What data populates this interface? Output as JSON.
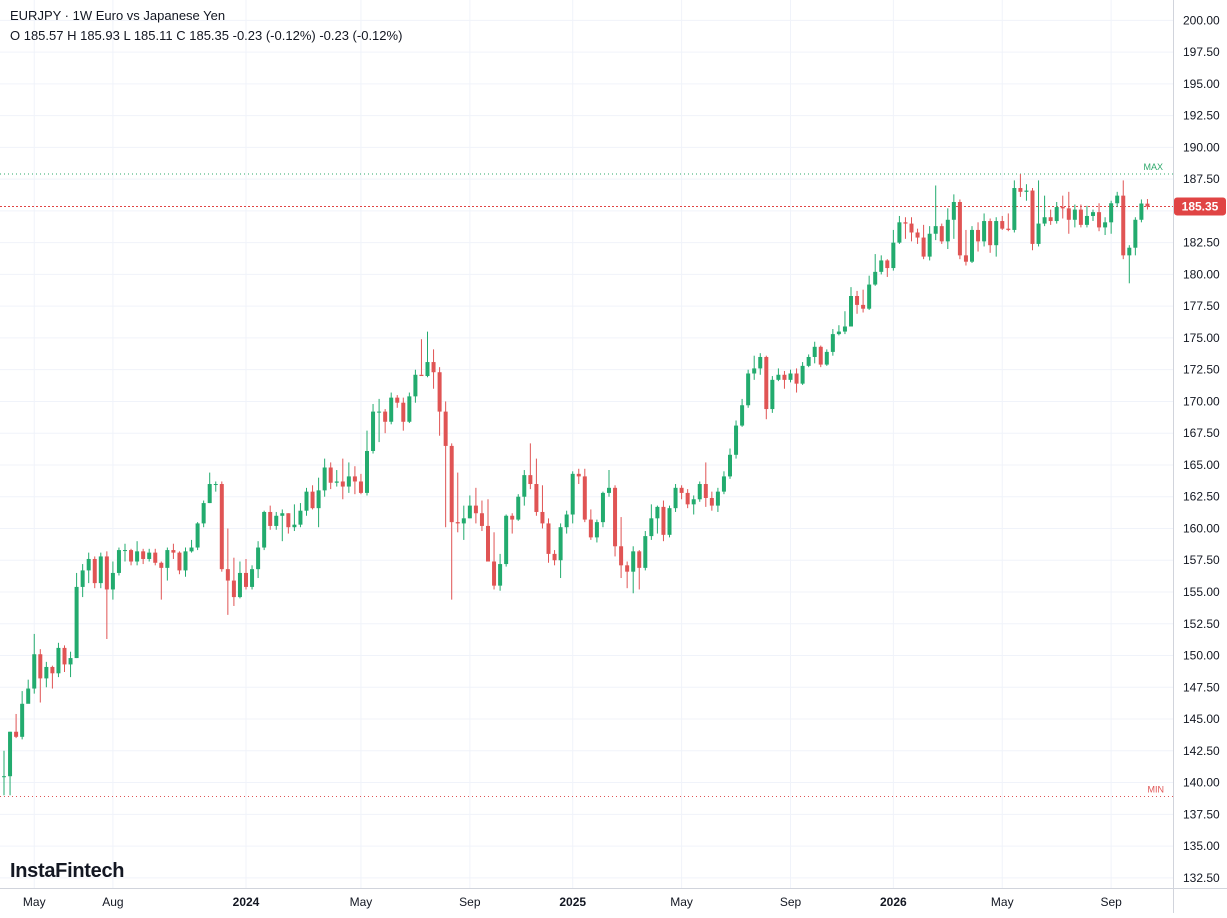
{
  "header": {
    "symbol_line": "EURJPY · 1W Euro vs Japanese Yen",
    "ohlc_line": "O 185.57 H 185.93 L 185.11 C 185.35 -0.23 (-0.12%) -0.23 (-0.12%)"
  },
  "logo": {
    "text": "InstaFintech"
  },
  "colors": {
    "up": "#26a69a",
    "down": "#ef5350",
    "up_body": "#22ab6e",
    "down_body": "#e05454",
    "max_line": "#2ea86b",
    "min_line": "#e05454",
    "last_price_line": "#e04444",
    "grid": "#f0f3fa",
    "axis_text": "#131722"
  },
  "chart_data": {
    "type": "candlestick",
    "symbol": "EURJPY",
    "timeframe": "1W",
    "yticks": [
      200.0,
      197.5,
      195.0,
      192.5,
      190.0,
      187.5,
      185.0,
      182.5,
      180.0,
      177.5,
      175.0,
      172.5,
      170.0,
      167.5,
      165.0,
      162.5,
      160.0,
      157.5,
      155.0,
      152.5,
      150.0,
      147.5,
      145.0,
      142.5,
      140.0,
      137.5,
      135.0,
      132.5
    ],
    "ylim": [
      131.7,
      201.6
    ],
    "xticks": [
      {
        "label": "May",
        "idx": 5
      },
      {
        "label": "Aug",
        "idx": 18
      },
      {
        "label": "2024",
        "idx": 40,
        "bold": true
      },
      {
        "label": "May",
        "idx": 59
      },
      {
        "label": "Sep",
        "idx": 77
      },
      {
        "label": "2025",
        "idx": 94,
        "bold": true
      },
      {
        "label": "May",
        "idx": 112
      },
      {
        "label": "Sep",
        "idx": 130
      },
      {
        "label": "2026",
        "idx": 147,
        "bold": true
      },
      {
        "label": "May",
        "idx": 165
      },
      {
        "label": "Sep",
        "idx": 183
      }
    ],
    "max_label": "MAX",
    "max_value": 187.9,
    "min_label": "MIN",
    "min_value": 138.9,
    "last_price_label": "185.35",
    "last_price": 185.35,
    "candles": [
      [
        140.5,
        140.5,
        139,
        142.5
      ],
      [
        140.5,
        144,
        139,
        144
      ],
      [
        144,
        143.6,
        143.5,
        145.4
      ],
      [
        143.6,
        146.2,
        143.4,
        147.2
      ],
      [
        146.2,
        147.4,
        146.3,
        148.1
      ],
      [
        147.4,
        150.1,
        147,
        151.7
      ],
      [
        150.1,
        148.2,
        146.3,
        150.5
      ],
      [
        148.2,
        149.1,
        147.5,
        149.5
      ],
      [
        149.1,
        148.6,
        147.4,
        149.2
      ],
      [
        148.6,
        150.6,
        148.3,
        151
      ],
      [
        150.6,
        149.3,
        148.7,
        150.8
      ],
      [
        149.3,
        149.8,
        148.3,
        150.3
      ],
      [
        149.8,
        155.4,
        149.8,
        156.5
      ],
      [
        155.4,
        156.7,
        154.6,
        157.2
      ],
      [
        156.7,
        157.6,
        155.7,
        158.1
      ],
      [
        157.6,
        155.7,
        155.3,
        157.8
      ],
      [
        155.7,
        157.8,
        155.3,
        158.1
      ],
      [
        157.8,
        155.2,
        151.3,
        158.2
      ],
      [
        155.2,
        156.5,
        154.4,
        157.4
      ],
      [
        156.5,
        158.3,
        156.3,
        158.5
      ],
      [
        158.3,
        158.3,
        157.4,
        158.8
      ],
      [
        158.3,
        157.4,
        157.1,
        158.4
      ],
      [
        157.4,
        158.2,
        157.1,
        159
      ],
      [
        158.2,
        157.6,
        157.2,
        158.4
      ],
      [
        157.6,
        158.1,
        157.4,
        158.4
      ],
      [
        158.1,
        157.3,
        157.1,
        158.4
      ],
      [
        157.3,
        156.9,
        154.4,
        157.4
      ],
      [
        156.9,
        158.3,
        155.9,
        158.5
      ],
      [
        158.3,
        158.1,
        157.6,
        158.8
      ],
      [
        158.1,
        156.7,
        156.4,
        158.2
      ],
      [
        156.7,
        158.2,
        156.2,
        158.5
      ],
      [
        158.2,
        158.5,
        158.1,
        159.1
      ],
      [
        158.5,
        160.4,
        158.3,
        160.5
      ],
      [
        160.4,
        162,
        160.1,
        162.2
      ],
      [
        162,
        163.5,
        162,
        164.4
      ],
      [
        163.5,
        163.5,
        162.9,
        163.7
      ],
      [
        163.5,
        156.8,
        156.6,
        163.7
      ],
      [
        156.8,
        155.9,
        153.2,
        160
      ],
      [
        155.9,
        154.6,
        153.9,
        157.7
      ],
      [
        154.6,
        156.5,
        154.5,
        157.4
      ],
      [
        156.5,
        155.4,
        155.2,
        157.6
      ],
      [
        155.4,
        156.8,
        155.2,
        157.1
      ],
      [
        156.8,
        158.5,
        156.1,
        159
      ],
      [
        158.5,
        161.3,
        158.3,
        161.4
      ],
      [
        161.3,
        160.2,
        159.9,
        161.8
      ],
      [
        160.2,
        161,
        159.9,
        161.3
      ],
      [
        161,
        161.2,
        159,
        161.5
      ],
      [
        161.2,
        160.1,
        159.6,
        161.2
      ],
      [
        160.1,
        160.3,
        159.8,
        161.9
      ],
      [
        160.3,
        161.4,
        160.1,
        162
      ],
      [
        161.4,
        162.9,
        161,
        163.2
      ],
      [
        162.9,
        161.6,
        161.5,
        163.4
      ],
      [
        161.6,
        163,
        160.1,
        164
      ],
      [
        163,
        164.8,
        162.5,
        165.5
      ],
      [
        164.8,
        163.6,
        163.1,
        165.2
      ],
      [
        163.6,
        163.7,
        163.3,
        164.6
      ],
      [
        163.7,
        163.3,
        162.3,
        165.5
      ],
      [
        163.3,
        164.1,
        162.8,
        165.2
      ],
      [
        164.1,
        163.7,
        162.7,
        164.9
      ],
      [
        163.7,
        162.8,
        162.7,
        164.3
      ],
      [
        162.8,
        166.1,
        162.6,
        167.7
      ],
      [
        166.1,
        169.2,
        165.9,
        169.8
      ],
      [
        169.2,
        169.2,
        166.8,
        170.2
      ],
      [
        169.2,
        168.4,
        167.5,
        169.4
      ],
      [
        168.4,
        170.3,
        168.2,
        170.7
      ],
      [
        170.3,
        169.9,
        169.5,
        170.5
      ],
      [
        169.9,
        168.4,
        167.7,
        170.3
      ],
      [
        168.4,
        170.4,
        168.3,
        170.7
      ],
      [
        170.4,
        172.1,
        169.9,
        172.5
      ],
      [
        172.1,
        172,
        172.1,
        174.9
      ],
      [
        172,
        173.1,
        171.9,
        175.5
      ],
      [
        173.1,
        172.3,
        171,
        174.1
      ],
      [
        172.3,
        169.2,
        167.3,
        172.7
      ],
      [
        169.2,
        166.5,
        160.1,
        170
      ],
      [
        166.5,
        160.5,
        154.4,
        166.7
      ],
      [
        160.5,
        160.4,
        159.7,
        164.4
      ],
      [
        160.4,
        160.8,
        159.1,
        161.8
      ],
      [
        160.8,
        161.8,
        160.8,
        162.6
      ],
      [
        161.8,
        161.2,
        160.4,
        163.2
      ],
      [
        161.2,
        160.2,
        159.8,
        162.2
      ],
      [
        160.2,
        157.4,
        157.4,
        162.3
      ],
      [
        157.4,
        155.5,
        155.2,
        159.7
      ],
      [
        155.5,
        157.2,
        155.1,
        158
      ],
      [
        157.2,
        161,
        157,
        161.1
      ],
      [
        161,
        160.7,
        159.6,
        161.2
      ],
      [
        160.7,
        162.5,
        160.6,
        162.7
      ],
      [
        162.5,
        164.2,
        161.8,
        164.6
      ],
      [
        164.2,
        163.5,
        163.1,
        166.7
      ],
      [
        163.5,
        161.3,
        161,
        165.5
      ],
      [
        161.3,
        160.4,
        160,
        163.4
      ],
      [
        160.4,
        158,
        157.3,
        160.8
      ],
      [
        158,
        157.5,
        157.1,
        158.3
      ],
      [
        157.5,
        160.1,
        156.1,
        160.4
      ],
      [
        160.1,
        161.1,
        159.6,
        161.4
      ],
      [
        161.1,
        164.3,
        160.4,
        164.5
      ],
      [
        164.3,
        164.1,
        163.5,
        164.7
      ],
      [
        164.1,
        160.7,
        160.5,
        164.7
      ],
      [
        160.7,
        159.3,
        159.1,
        161.5
      ],
      [
        159.3,
        160.5,
        158.9,
        160.7
      ],
      [
        160.5,
        162.8,
        160.1,
        162.9
      ],
      [
        162.8,
        163.2,
        162.5,
        164.6
      ],
      [
        163.2,
        158.6,
        157.8,
        163.4
      ],
      [
        158.6,
        157.1,
        156.1,
        160.9
      ],
      [
        157.1,
        156.6,
        155.3,
        157.4
      ],
      [
        156.6,
        158.2,
        154.9,
        158.6
      ],
      [
        158.2,
        156.9,
        155.2,
        158.3
      ],
      [
        156.9,
        159.4,
        156.7,
        159.8
      ],
      [
        159.4,
        160.8,
        159.1,
        161.9
      ],
      [
        160.8,
        161.7,
        159.6,
        161.8
      ],
      [
        161.7,
        159.5,
        159,
        162.2
      ],
      [
        159.5,
        161.6,
        159.3,
        161.8
      ],
      [
        161.6,
        163.2,
        161.3,
        163.5
      ],
      [
        163.2,
        162.8,
        162.3,
        163.4
      ],
      [
        162.8,
        161.9,
        161.6,
        163.1
      ],
      [
        161.9,
        162.3,
        161.1,
        162.6
      ],
      [
        162.3,
        163.5,
        162.1,
        163.7
      ],
      [
        163.5,
        162.4,
        161.7,
        165.2
      ],
      [
        162.4,
        161.8,
        161.4,
        162.9
      ],
      [
        161.8,
        162.9,
        161.3,
        163.2
      ],
      [
        162.9,
        164.1,
        162.7,
        164.5
      ],
      [
        164.1,
        165.8,
        163.9,
        166.3
      ],
      [
        165.8,
        168.1,
        165.5,
        168.5
      ],
      [
        168.1,
        169.7,
        168,
        170.2
      ],
      [
        169.7,
        172.2,
        169.5,
        172.5
      ],
      [
        172.2,
        172.6,
        171.7,
        173.6
      ],
      [
        172.6,
        173.5,
        172.1,
        173.8
      ],
      [
        173.5,
        169.4,
        168.6,
        173.6
      ],
      [
        169.4,
        171.7,
        169.1,
        172
      ],
      [
        171.7,
        172.1,
        171.6,
        172.6
      ],
      [
        172.1,
        171.7,
        171,
        172.4
      ],
      [
        171.7,
        172.2,
        171.5,
        172.5
      ],
      [
        172.2,
        171.4,
        170.7,
        172.6
      ],
      [
        171.4,
        172.8,
        171.3,
        173.1
      ],
      [
        172.8,
        173.5,
        172.7,
        173.7
      ],
      [
        173.5,
        174.3,
        173,
        174.7
      ],
      [
        174.3,
        172.9,
        172.7,
        174.4
      ],
      [
        172.9,
        173.9,
        172.8,
        174.1
      ],
      [
        173.9,
        175.3,
        173.6,
        175.7
      ],
      [
        175.3,
        175.5,
        175.2,
        176
      ],
      [
        175.5,
        175.9,
        175.3,
        177.1
      ],
      [
        175.9,
        178.3,
        175.9,
        179
      ],
      [
        178.3,
        177.6,
        176.9,
        178.7
      ],
      [
        177.6,
        177.3,
        177,
        178.8
      ],
      [
        177.3,
        179.2,
        177.2,
        179.9
      ],
      [
        179.2,
        180.2,
        179.1,
        181.6
      ],
      [
        180.2,
        181.1,
        180,
        181.5
      ],
      [
        181.1,
        180.5,
        179.8,
        181.2
      ],
      [
        180.5,
        182.5,
        180.3,
        183.5
      ],
      [
        182.5,
        184.1,
        182.4,
        184.6
      ],
      [
        184.1,
        184,
        182.8,
        184.5
      ],
      [
        184,
        183.3,
        182.6,
        184.5
      ],
      [
        183.3,
        182.9,
        182.4,
        183.6
      ],
      [
        182.9,
        181.4,
        181.2,
        183.9
      ],
      [
        181.4,
        183.2,
        181.1,
        183.8
      ],
      [
        183.2,
        183.8,
        182.7,
        187
      ],
      [
        183.8,
        182.6,
        182.4,
        184
      ],
      [
        182.6,
        184.3,
        182,
        185.2
      ],
      [
        184.3,
        185.7,
        182.8,
        186.3
      ],
      [
        185.7,
        181.5,
        181.2,
        185.9
      ],
      [
        181.5,
        181,
        180.7,
        183.5
      ],
      [
        181,
        183.5,
        180.9,
        183.8
      ],
      [
        183.5,
        182.6,
        181.8,
        184.1
      ],
      [
        182.6,
        184.2,
        182.2,
        184.8
      ],
      [
        184.2,
        182.3,
        181.7,
        184.4
      ],
      [
        182.3,
        184.2,
        181.4,
        184.5
      ],
      [
        184.2,
        183.6,
        183.5,
        184.6
      ],
      [
        183.6,
        183.5,
        183.4,
        184.8
      ],
      [
        183.5,
        186.8,
        183.3,
        187.4
      ],
      [
        186.8,
        186.5,
        186.1,
        187.9
      ],
      [
        186.5,
        186.6,
        185.8,
        187.1
      ],
      [
        186.6,
        182.4,
        181.9,
        186.8
      ],
      [
        182.4,
        184,
        182.2,
        187.4
      ],
      [
        184,
        184.5,
        183.8,
        186.2
      ],
      [
        184.5,
        184.2,
        183.9,
        185.1
      ],
      [
        184.2,
        185.3,
        184,
        185.7
      ],
      [
        185.3,
        185.2,
        184.4,
        186.2
      ],
      [
        185.2,
        184.3,
        183.2,
        186.5
      ],
      [
        184.3,
        185.1,
        183.7,
        185.5
      ],
      [
        185.1,
        183.9,
        183.7,
        185.5
      ],
      [
        183.9,
        184.6,
        183.7,
        185.4
      ],
      [
        184.6,
        184.9,
        184.2,
        185.1
      ],
      [
        184.9,
        183.7,
        183.4,
        185.6
      ],
      [
        183.7,
        184.1,
        183.1,
        184.5
      ],
      [
        184.1,
        185.6,
        183.2,
        185.8
      ],
      [
        185.6,
        186.2,
        185.3,
        186.5
      ],
      [
        186.2,
        181.5,
        181.2,
        187.4
      ],
      [
        181.5,
        182.1,
        179.3,
        182.3
      ],
      [
        182.1,
        184.3,
        181.5,
        184.5
      ],
      [
        184.3,
        185.58,
        184.1,
        185.9
      ],
      [
        185.57,
        185.35,
        185.11,
        185.93
      ]
    ]
  }
}
